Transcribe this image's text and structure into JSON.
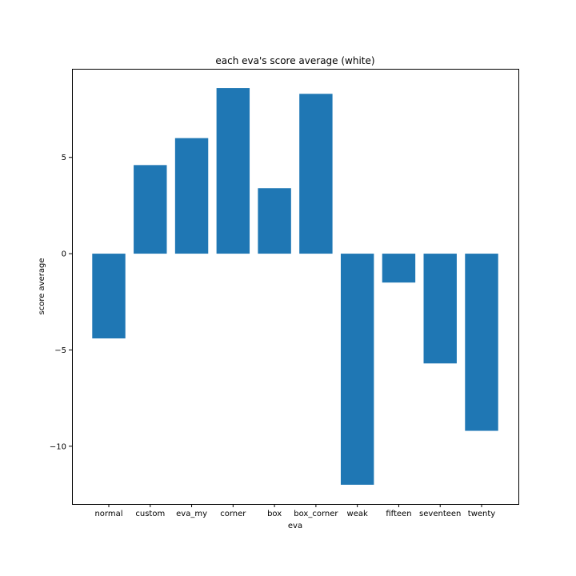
{
  "chart_data": {
    "type": "bar",
    "title": "each eva's score average (white)",
    "xlabel": "eva",
    "ylabel": "score average",
    "categories": [
      "normal",
      "custom",
      "eva_my",
      "corner",
      "box",
      "box_corner",
      "weak",
      "fifteen",
      "seventeen",
      "twenty"
    ],
    "values": [
      -4.4,
      4.6,
      6.0,
      8.6,
      3.4,
      8.3,
      -12.0,
      -1.5,
      -5.7,
      -9.2
    ],
    "yticks": [
      -10,
      -5,
      0,
      5
    ],
    "ytick_labels": [
      "−10",
      "−5",
      "0",
      "5"
    ],
    "ylim": [
      -13.0,
      9.6
    ],
    "bar_color": "#1f77b4",
    "grid": false,
    "legend": "none"
  }
}
